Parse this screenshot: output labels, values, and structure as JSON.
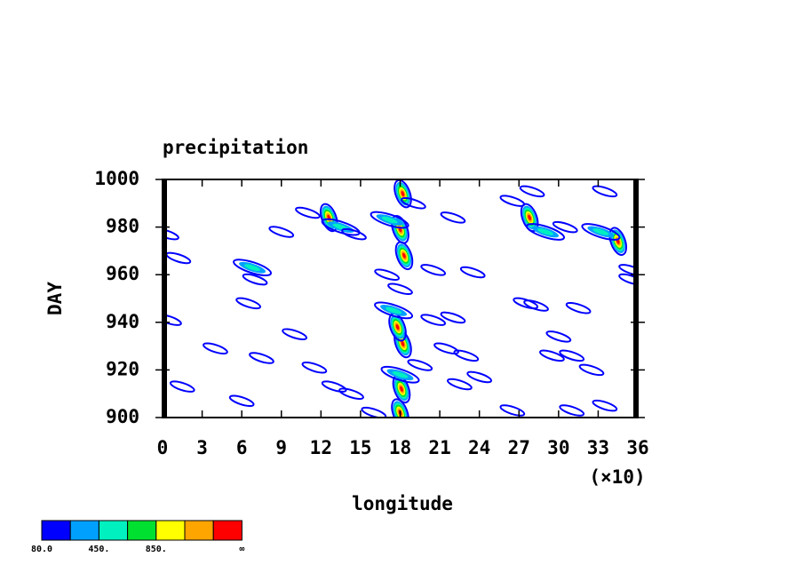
{
  "chart_data": {
    "type": "contour",
    "title": "precipitation",
    "xlabel": "longitude",
    "ylabel": "DAY",
    "x_multiplier": "(×10)",
    "xlim": [
      0,
      36
    ],
    "xticks": [
      0,
      3,
      6,
      9,
      12,
      15,
      18,
      21,
      24,
      27,
      30,
      33,
      36
    ],
    "ylim": [
      900,
      1000
    ],
    "yticks": [
      900,
      920,
      940,
      960,
      980,
      1000
    ],
    "colorbar": {
      "colors": [
        "#0000ff",
        "#00a0ff",
        "#00f0c0",
        "#00e030",
        "#ffff00",
        "#ffa500",
        "#ff0000"
      ],
      "bounds": [
        {
          "value": 80,
          "label": "80.0"
        },
        null,
        {
          "value": 450,
          "label": "450."
        },
        null,
        {
          "value": 850,
          "label": "850."
        },
        null,
        null,
        "∞"
      ]
    },
    "cells": [
      {
        "lon": 18.0,
        "day": 902,
        "value": 1000
      },
      {
        "lon": 18.1,
        "day": 912,
        "value": 900
      },
      {
        "lon": 18.0,
        "day": 918,
        "value": 500
      },
      {
        "lon": 18.2,
        "day": 931,
        "value": 1000
      },
      {
        "lon": 17.8,
        "day": 938,
        "value": 900
      },
      {
        "lon": 17.5,
        "day": 945,
        "value": 600
      },
      {
        "lon": 18.0,
        "day": 954,
        "value": 400
      },
      {
        "lon": 17.0,
        "day": 960,
        "value": 300
      },
      {
        "lon": 18.3,
        "day": 968,
        "value": 1000
      },
      {
        "lon": 18.0,
        "day": 979,
        "value": 900
      },
      {
        "lon": 17.2,
        "day": 983,
        "value": 500
      },
      {
        "lon": 18.2,
        "day": 994,
        "value": 1000
      },
      {
        "lon": 19.0,
        "day": 990,
        "value": 300
      },
      {
        "lon": 12.6,
        "day": 984,
        "value": 900
      },
      {
        "lon": 13.5,
        "day": 980,
        "value": 500
      },
      {
        "lon": 11.0,
        "day": 986,
        "value": 300
      },
      {
        "lon": 9.0,
        "day": 978,
        "value": 200
      },
      {
        "lon": 14.5,
        "day": 977,
        "value": 300
      },
      {
        "lon": 6.8,
        "day": 963,
        "value": 500
      },
      {
        "lon": 7.0,
        "day": 958,
        "value": 300
      },
      {
        "lon": 6.5,
        "day": 948,
        "value": 400
      },
      {
        "lon": 1.2,
        "day": 967,
        "value": 200
      },
      {
        "lon": 0.3,
        "day": 977,
        "value": 200
      },
      {
        "lon": 27.8,
        "day": 984,
        "value": 900
      },
      {
        "lon": 29.0,
        "day": 978,
        "value": 500
      },
      {
        "lon": 30.5,
        "day": 980,
        "value": 300
      },
      {
        "lon": 26.5,
        "day": 991,
        "value": 200
      },
      {
        "lon": 28.0,
        "day": 995,
        "value": 300
      },
      {
        "lon": 34.5,
        "day": 974,
        "value": 1000
      },
      {
        "lon": 33.2,
        "day": 978,
        "value": 600
      },
      {
        "lon": 35.5,
        "day": 962,
        "value": 300
      },
      {
        "lon": 35.5,
        "day": 958,
        "value": 300
      },
      {
        "lon": 33.5,
        "day": 995,
        "value": 300
      },
      {
        "lon": 22.0,
        "day": 984,
        "value": 200
      },
      {
        "lon": 23.5,
        "day": 961,
        "value": 200
      },
      {
        "lon": 20.5,
        "day": 962,
        "value": 200
      },
      {
        "lon": 27.5,
        "day": 948,
        "value": 400
      },
      {
        "lon": 31.5,
        "day": 946,
        "value": 200
      },
      {
        "lon": 20.5,
        "day": 941,
        "value": 300
      },
      {
        "lon": 22.0,
        "day": 942,
        "value": 300
      },
      {
        "lon": 21.5,
        "day": 929,
        "value": 400
      },
      {
        "lon": 23.0,
        "day": 926,
        "value": 300
      },
      {
        "lon": 19.5,
        "day": 922,
        "value": 300
      },
      {
        "lon": 22.5,
        "day": 914,
        "value": 300
      },
      {
        "lon": 29.5,
        "day": 926,
        "value": 400
      },
      {
        "lon": 31.0,
        "day": 926,
        "value": 400
      },
      {
        "lon": 32.5,
        "day": 920,
        "value": 200
      },
      {
        "lon": 30.0,
        "day": 934,
        "value": 200
      },
      {
        "lon": 6.0,
        "day": 907,
        "value": 400
      },
      {
        "lon": 1.5,
        "day": 913,
        "value": 300
      },
      {
        "lon": 11.5,
        "day": 921,
        "value": 300
      },
      {
        "lon": 13.0,
        "day": 913,
        "value": 200
      },
      {
        "lon": 14.3,
        "day": 910,
        "value": 300
      },
      {
        "lon": 10.0,
        "day": 935,
        "value": 200
      },
      {
        "lon": 7.5,
        "day": 925,
        "value": 200
      },
      {
        "lon": 0.5,
        "day": 941,
        "value": 200
      },
      {
        "lon": 4.0,
        "day": 929,
        "value": 200
      },
      {
        "lon": 24.0,
        "day": 917,
        "value": 200
      },
      {
        "lon": 26.5,
        "day": 903,
        "value": 200
      },
      {
        "lon": 31.0,
        "day": 903,
        "value": 200
      },
      {
        "lon": 33.5,
        "day": 905,
        "value": 200
      },
      {
        "lon": 16.0,
        "day": 902,
        "value": 200
      },
      {
        "lon": 28.3,
        "day": 947,
        "value": 300
      }
    ]
  }
}
